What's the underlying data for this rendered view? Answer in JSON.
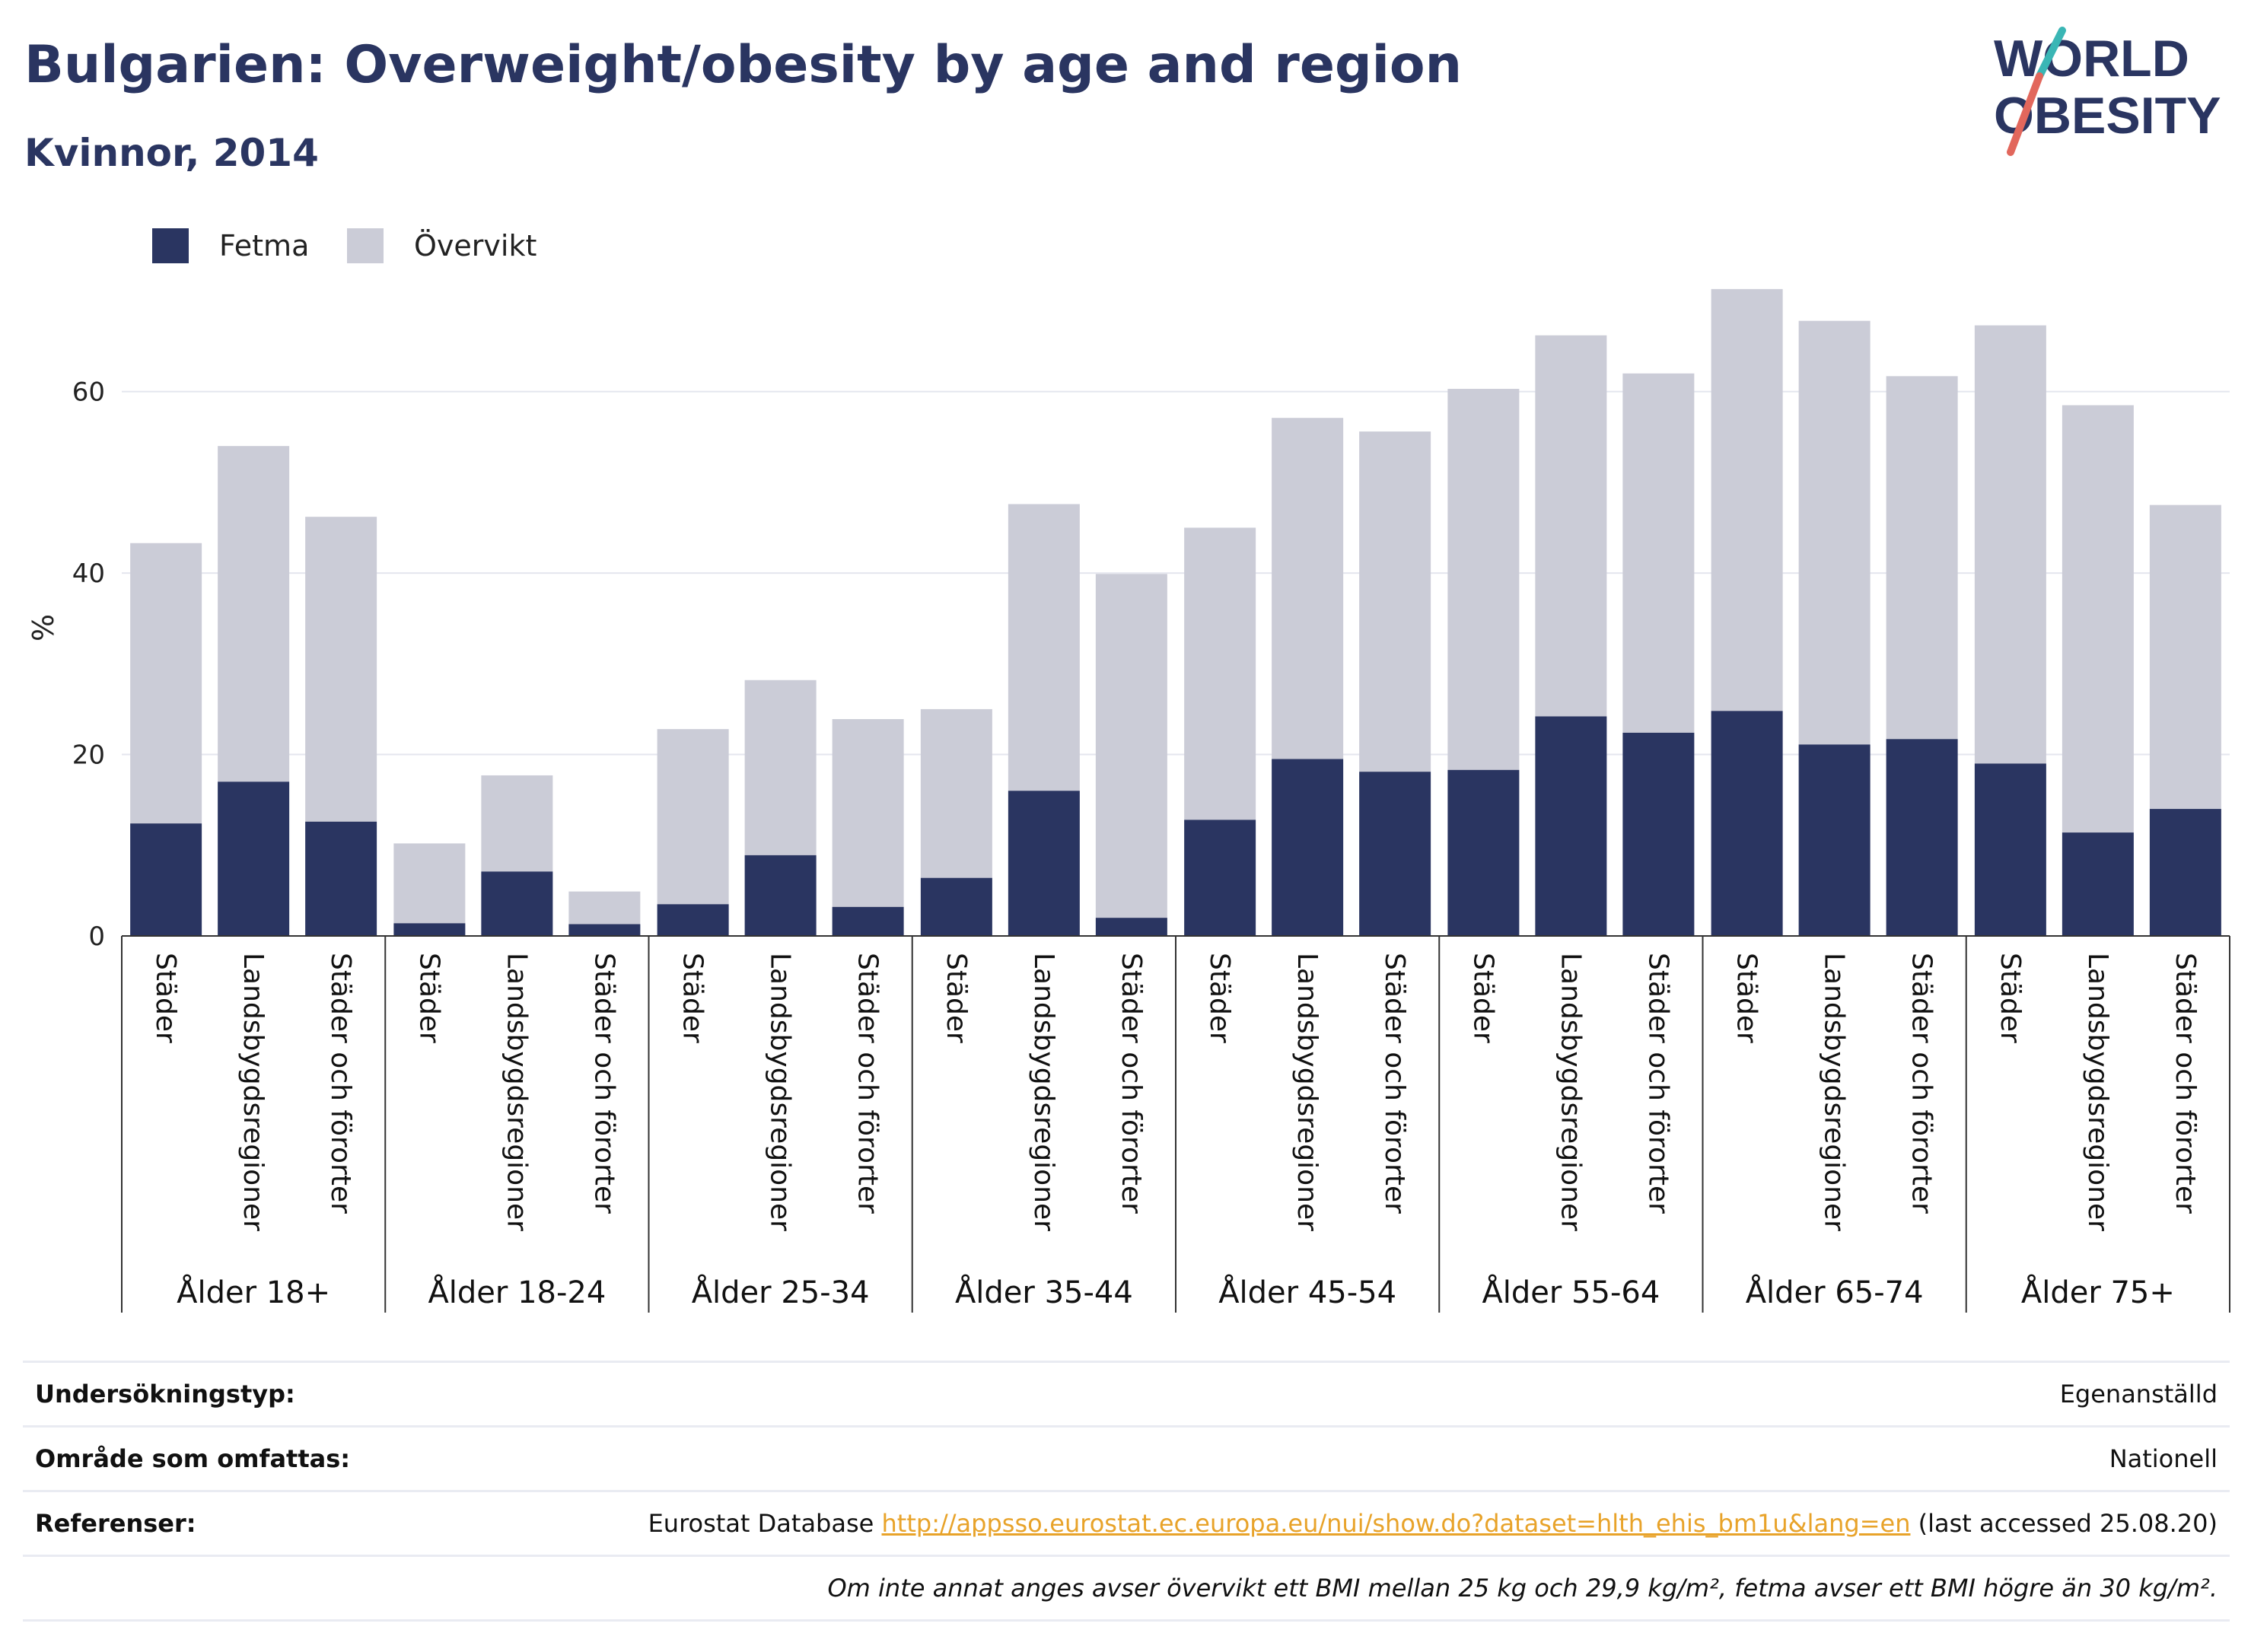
{
  "header": {
    "title": "Bulgarien: Overweight/obesity by age and region",
    "subtitle": "Kvinnor, 2014"
  },
  "logo": {
    "line1": "WORLD",
    "line2": "OBESITY"
  },
  "colors": {
    "obesity": "#2a3561",
    "overweight": "#cbccd7",
    "title": "#2a3561",
    "link": "#e8a32a"
  },
  "chart_data": {
    "type": "bar",
    "stacked": true,
    "ylabel": "%",
    "ylim": [
      0,
      78
    ],
    "yticks": [
      0,
      20,
      40,
      60
    ],
    "grid": true,
    "legend_position": "top-left",
    "groups": [
      "Ålder 18+",
      "Ålder 18-24",
      "Ålder 25-34",
      "Ålder 35-44",
      "Ålder 45-54",
      "Ålder 55-64",
      "Ålder 65-74",
      "Ålder 75+"
    ],
    "categories": [
      "Städer",
      "Landsbygdsregioner",
      "Städer och förorter"
    ],
    "series": [
      {
        "name": "Fetma",
        "values": [
          [
            12.4,
            17.0,
            12.6
          ],
          [
            1.4,
            7.1,
            1.3
          ],
          [
            3.5,
            8.9,
            3.2
          ],
          [
            6.4,
            16.0,
            2.0
          ],
          [
            12.8,
            19.5,
            18.1
          ],
          [
            18.3,
            24.2,
            22.4
          ],
          [
            24.8,
            21.1,
            21.7
          ],
          [
            19.0,
            11.4,
            14.0
          ]
        ]
      },
      {
        "name": "Övervikt",
        "values": [
          [
            30.9,
            37.0,
            33.6
          ],
          [
            8.8,
            10.6,
            3.6
          ],
          [
            19.3,
            19.3,
            20.7
          ],
          [
            18.6,
            31.6,
            37.9
          ],
          [
            32.2,
            37.6,
            37.5
          ],
          [
            42.0,
            42.0,
            39.6
          ],
          [
            46.5,
            46.7,
            40.0
          ],
          [
            48.3,
            47.1,
            33.5
          ]
        ]
      }
    ]
  },
  "info": {
    "survey_type_label": "Undersökningstyp:",
    "survey_type_value": "Egenanställd",
    "area_label": "Område som omfattas:",
    "area_value": "Nationell",
    "references_label": "Referenser:",
    "references_prefix": "Eurostat Database",
    "references_link": "http://appsso.eurostat.ec.europa.eu/nui/show.do?dataset=hlth_ehis_bm1u&lang=en",
    "references_suffix": "(last accessed 25.08.20)",
    "note": "Om inte annat anges avser övervikt ett BMI mellan 25 kg och 29,9 kg/m², fetma avser ett BMI högre än 30 kg/m²."
  }
}
